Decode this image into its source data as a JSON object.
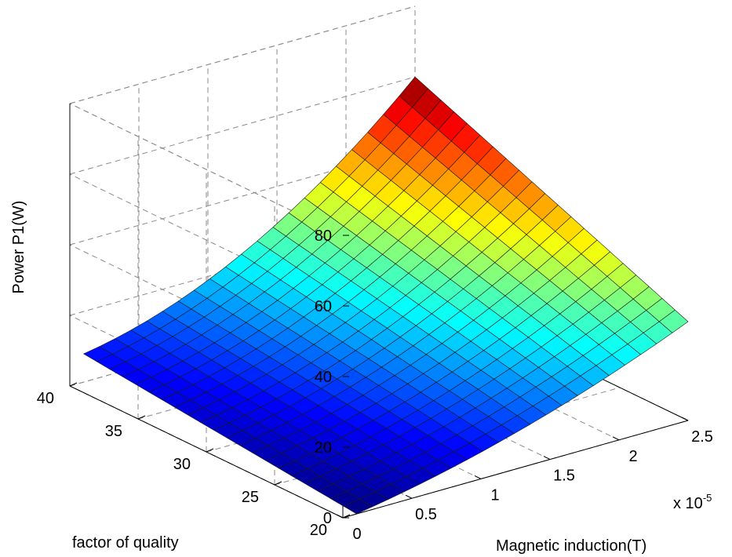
{
  "chart_data": {
    "type": "surface",
    "x": {
      "label": "Magnetic induction(T)",
      "ticks": [
        0,
        0.5,
        1,
        1.5,
        2,
        2.5
      ],
      "range": [
        0,
        2.5
      ],
      "multiplier": "x 10",
      "multiplier_exp": "-5"
    },
    "y": {
      "label": "factor of quality",
      "ticks": [
        20,
        25,
        30,
        35,
        40
      ],
      "range": [
        20,
        40
      ]
    },
    "z": {
      "label": "Power P1(W)",
      "ticks": [
        0,
        20,
        40,
        60,
        80
      ],
      "range": [
        0,
        80
      ]
    },
    "grid": true,
    "colormap": "jet",
    "surface_domain": {
      "x": [
        0.1,
        2.5
      ],
      "y": [
        20,
        40
      ]
    },
    "corner_values": [
      {
        "x": 0.1,
        "y": 20,
        "z": 0
      },
      {
        "x": 0.1,
        "y": 40,
        "z": 8
      },
      {
        "x": 2.5,
        "y": 20,
        "z": 28
      },
      {
        "x": 2.5,
        "y": 40,
        "z": 60
      }
    ]
  }
}
